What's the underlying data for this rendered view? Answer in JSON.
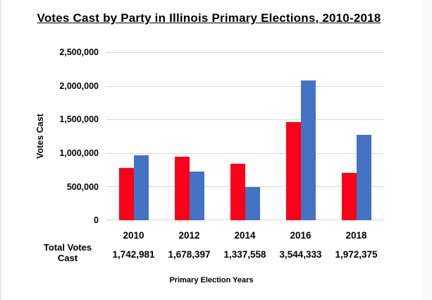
{
  "title": "Votes Cast by Party in Illinois Primary Elections, 2010-2018",
  "chart_data": {
    "type": "bar",
    "title": "Votes Cast by Party in Illinois Primary Elections, 2010-2018",
    "xlabel": "Primary Election Years",
    "ylabel": "Votes Cast",
    "categories": [
      "2010",
      "2012",
      "2014",
      "2016",
      "2018"
    ],
    "series": [
      {
        "name": "red-series",
        "color": "#fb0018",
        "values": [
          780000,
          950000,
          842000,
          1460000,
          705000
        ]
      },
      {
        "name": "blue-series",
        "color": "#4472c4",
        "values": [
          963000,
          728000,
          495000,
          2084000,
          1267000
        ]
      }
    ],
    "totals_label": "Total Votes Cast",
    "totals": [
      "1,742,981",
      "1,678,397",
      "1,337,558",
      "3,544,333",
      "1,972,375"
    ],
    "ylim": [
      0,
      2500000
    ],
    "ytick_step": 500000,
    "yticks": [
      "2,500,000",
      "2,000,000",
      "1,500,000",
      "1,000,000",
      "500,000",
      "0"
    ],
    "grid": true,
    "legend": "none",
    "colors": {
      "grid": "#d9d9d9",
      "text": "#000000",
      "background": "#ffffff"
    }
  }
}
